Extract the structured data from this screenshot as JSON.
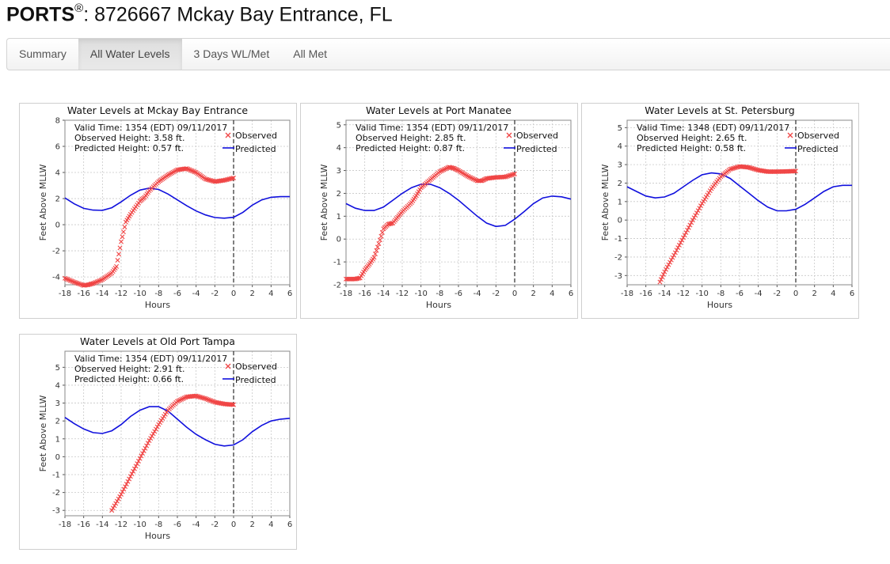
{
  "header": {
    "brand": "PORTS",
    "registered": "®",
    "suffix": ": 8726667 Mckay Bay Entrance, FL"
  },
  "tabs": [
    {
      "label": "Summary",
      "active": false
    },
    {
      "label": "All Water Levels",
      "active": true
    },
    {
      "label": "3 Days WL/Met",
      "active": false
    },
    {
      "label": "All Met",
      "active": false
    }
  ],
  "colors": {
    "observed": "#f04545",
    "predicted": "#1010dd",
    "grid": "#c8c8c8"
  },
  "chart_data": [
    {
      "type": "line",
      "title": "Water Levels at Mckay Bay Entrance",
      "xlabel": "Hours",
      "ylabel": "Feet Above MLLW",
      "xlim": [
        -18,
        6
      ],
      "ylim": [
        -4.6,
        8
      ],
      "xticks": [
        -18,
        -16,
        -14,
        -12,
        -10,
        -8,
        -6,
        -4,
        -2,
        0,
        2,
        4,
        6
      ],
      "yticks": [
        -4,
        -2,
        0,
        2,
        4,
        6,
        8
      ],
      "grid": true,
      "legend": "top-right",
      "info": {
        "valid_time": "Valid Time: 1354 (EDT) 09/11/2017",
        "observed": "Observed Height: 3.58 ft.",
        "predicted": "Predicted Height: 0.57 ft."
      },
      "series": [
        {
          "name": "Observed",
          "marker": "x",
          "x": [
            -18,
            -17,
            -16,
            -15.5,
            -15,
            -14,
            -13,
            -12.5,
            -12,
            -11.5,
            -11,
            -10,
            -9.5,
            -9,
            -8,
            -7,
            -6,
            -5,
            -4,
            -3,
            -2,
            -1,
            0
          ],
          "y": [
            -4.1,
            -4.4,
            -4.65,
            -4.6,
            -4.5,
            -4.2,
            -3.7,
            -3.2,
            -1.3,
            0.2,
            0.8,
            1.8,
            2.1,
            2.6,
            3.3,
            3.8,
            4.2,
            4.3,
            4.0,
            3.5,
            3.3,
            3.4,
            3.58
          ]
        },
        {
          "name": "Predicted",
          "marker": "line",
          "x": [
            -18,
            -17,
            -16,
            -15,
            -14,
            -13,
            -12,
            -11,
            -10,
            -9,
            -8,
            -7,
            -6,
            -5,
            -4,
            -3,
            -2,
            -1,
            0,
            1,
            2,
            3,
            4,
            5,
            6
          ],
          "y": [
            2.05,
            1.6,
            1.25,
            1.12,
            1.1,
            1.3,
            1.75,
            2.25,
            2.65,
            2.8,
            2.7,
            2.35,
            1.9,
            1.45,
            1.05,
            0.75,
            0.55,
            0.5,
            0.57,
            0.95,
            1.5,
            1.9,
            2.1,
            2.15,
            2.15
          ]
        }
      ]
    },
    {
      "type": "line",
      "title": "Water Levels at Port Manatee",
      "xlabel": "Hours",
      "ylabel": "Feet Above MLLW",
      "xlim": [
        -18,
        6
      ],
      "ylim": [
        -2,
        5.2
      ],
      "xticks": [
        -18,
        -16,
        -14,
        -12,
        -10,
        -8,
        -6,
        -4,
        -2,
        0,
        2,
        4,
        6
      ],
      "yticks": [
        -2,
        -1,
        0,
        1,
        2,
        3,
        4,
        5
      ],
      "grid": true,
      "legend": "top-right",
      "info": {
        "valid_time": "Valid Time: 1354 (EDT) 09/11/2017",
        "observed": "Observed Height: 2.85 ft.",
        "predicted": "Predicted Height: 0.87 ft."
      },
      "series": [
        {
          "name": "Observed",
          "marker": "x",
          "x": [
            -18,
            -17,
            -16.5,
            -16,
            -15.5,
            -15,
            -14.5,
            -14,
            -13.5,
            -13,
            -12.5,
            -12,
            -11,
            -10.5,
            -10,
            -9,
            -8,
            -7,
            -6.5,
            -6,
            -5,
            -4,
            -3.5,
            -3,
            -2,
            -1,
            0
          ],
          "y": [
            -1.75,
            -1.75,
            -1.7,
            -1.35,
            -1.1,
            -0.8,
            -0.2,
            0.45,
            0.65,
            0.7,
            0.95,
            1.2,
            1.6,
            1.9,
            2.25,
            2.6,
            2.95,
            3.15,
            3.1,
            3.0,
            2.75,
            2.55,
            2.55,
            2.65,
            2.7,
            2.72,
            2.85
          ]
        },
        {
          "name": "Predicted",
          "marker": "line",
          "x": [
            -18,
            -17,
            -16,
            -15,
            -14,
            -13,
            -12,
            -11,
            -10,
            -9,
            -8,
            -7,
            -6,
            -5,
            -4,
            -3,
            -2,
            -1,
            0,
            1,
            2,
            3,
            4,
            5,
            6
          ],
          "y": [
            1.55,
            1.35,
            1.25,
            1.25,
            1.4,
            1.7,
            2.0,
            2.25,
            2.4,
            2.4,
            2.25,
            2.0,
            1.7,
            1.35,
            1.0,
            0.7,
            0.55,
            0.6,
            0.87,
            1.2,
            1.55,
            1.8,
            1.88,
            1.85,
            1.75
          ]
        }
      ]
    },
    {
      "type": "line",
      "title": "Water Levels at St. Petersburg",
      "xlabel": "Hours",
      "ylabel": "Feet Above MLLW",
      "xlim": [
        -18,
        6
      ],
      "ylim": [
        -3.5,
        5.4
      ],
      "xticks": [
        -18,
        -16,
        -14,
        -12,
        -10,
        -8,
        -6,
        -4,
        -2,
        0,
        2,
        4,
        6
      ],
      "yticks": [
        -3,
        -2,
        -1,
        0,
        1,
        2,
        3,
        4,
        5
      ],
      "grid": true,
      "legend": "top-right",
      "info": {
        "valid_time": "Valid Time: 1348 (EDT) 09/11/2017",
        "observed": "Observed Height: 2.65 ft.",
        "predicted": "Predicted Height: 0.58 ft."
      },
      "series": [
        {
          "name": "Observed",
          "marker": "x",
          "x": [
            -14.5,
            -14,
            -13,
            -12,
            -11,
            -10,
            -9,
            -8,
            -7,
            -6,
            -5,
            -4,
            -3,
            -2,
            -1,
            0
          ],
          "y": [
            -3.35,
            -2.8,
            -1.9,
            -0.95,
            0.0,
            0.9,
            1.7,
            2.35,
            2.75,
            2.9,
            2.85,
            2.7,
            2.62,
            2.62,
            2.63,
            2.65
          ]
        },
        {
          "name": "Predicted",
          "marker": "line",
          "x": [
            -18,
            -17,
            -16,
            -15,
            -14,
            -13,
            -12,
            -11,
            -10,
            -9,
            -8,
            -7,
            -6,
            -5,
            -4,
            -3,
            -2,
            -1,
            0,
            1,
            2,
            3,
            4,
            5,
            6
          ],
          "y": [
            1.8,
            1.55,
            1.3,
            1.2,
            1.25,
            1.45,
            1.8,
            2.15,
            2.45,
            2.55,
            2.5,
            2.25,
            1.85,
            1.45,
            1.05,
            0.7,
            0.5,
            0.5,
            0.58,
            0.85,
            1.2,
            1.55,
            1.8,
            1.88,
            1.88
          ]
        }
      ]
    },
    {
      "type": "line",
      "title": "Water Levels at Old Port Tampa",
      "xlabel": "Hours",
      "ylabel": "Feet Above MLLW",
      "xlim": [
        -18,
        6
      ],
      "ylim": [
        -3.3,
        5.9
      ],
      "xticks": [
        -18,
        -16,
        -14,
        -12,
        -10,
        -8,
        -6,
        -4,
        -2,
        0,
        2,
        4,
        6
      ],
      "yticks": [
        -3,
        -2,
        -1,
        0,
        1,
        2,
        3,
        4,
        5
      ],
      "grid": true,
      "legend": "top-right",
      "info": {
        "valid_time": "Valid Time: 1354 (EDT) 09/11/2017",
        "observed": "Observed Height: 2.91 ft.",
        "predicted": "Predicted Height: 0.66 ft."
      },
      "series": [
        {
          "name": "Observed",
          "marker": "x",
          "x": [
            -13,
            -12,
            -11,
            -10,
            -9,
            -8,
            -7,
            -6,
            -5,
            -4,
            -3,
            -2,
            -1,
            0
          ],
          "y": [
            -3.0,
            -2.1,
            -1.1,
            -0.1,
            0.9,
            1.8,
            2.6,
            3.1,
            3.35,
            3.4,
            3.25,
            3.05,
            2.95,
            2.91
          ]
        },
        {
          "name": "Predicted",
          "marker": "line",
          "x": [
            -18,
            -17,
            -16,
            -15,
            -14,
            -13,
            -12,
            -11,
            -10,
            -9,
            -8,
            -7,
            -6,
            -5,
            -4,
            -3,
            -2,
            -1,
            0,
            1,
            2,
            3,
            4,
            5,
            6
          ],
          "y": [
            2.2,
            1.85,
            1.55,
            1.35,
            1.3,
            1.45,
            1.8,
            2.25,
            2.6,
            2.8,
            2.8,
            2.55,
            2.1,
            1.65,
            1.25,
            0.95,
            0.7,
            0.6,
            0.66,
            0.95,
            1.4,
            1.75,
            2.0,
            2.1,
            2.15
          ]
        }
      ]
    }
  ]
}
